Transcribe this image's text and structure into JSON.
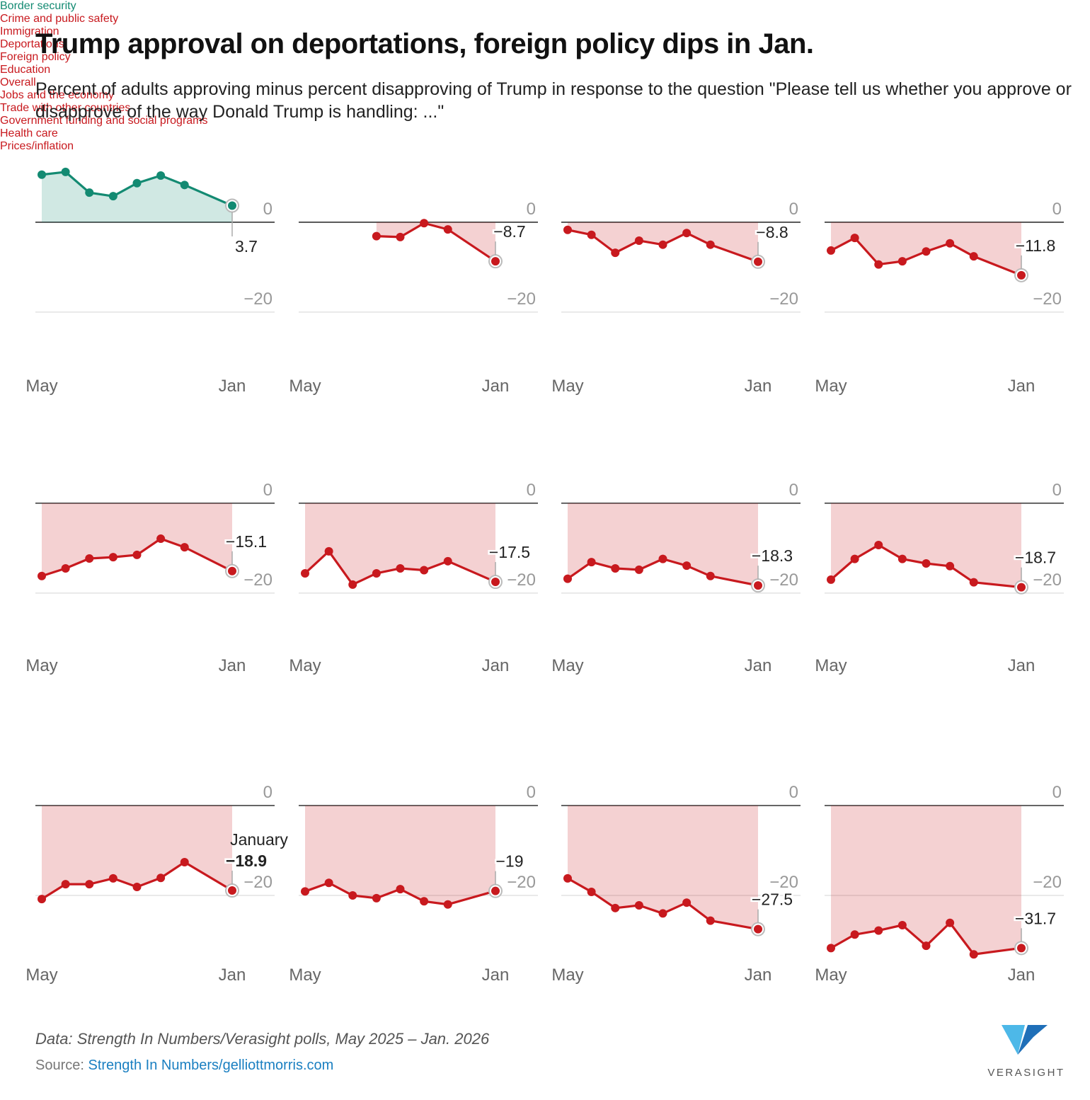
{
  "title": "Trump approval on deportations, foreign policy dips in Jan.",
  "subtitle": "Percent of adults approving minus percent disapproving of Trump in response to the question \"Please tell us whether you approve or disapprove of the way Donald Trump is handling: ...\"",
  "note": "Data: Strength In Numbers/Verasight polls, May 2025 – Jan. 2026",
  "source_label": "Source:",
  "source_link": "Strength In Numbers/gelliottmorris.com",
  "logo_text": "VERASIGHT",
  "chart_data": [
    {
      "type": "line",
      "title": "Border security",
      "color": "#138a72",
      "area": true,
      "xlim": [
        0,
        8
      ],
      "xticks": [
        {
          "value": 0,
          "label": "May"
        },
        {
          "value": 8,
          "label": "Jan"
        }
      ],
      "ylim": [
        -35,
        13
      ],
      "yticks": [
        0,
        {
          "value": -20,
          "label": "−20"
        }
      ],
      "x": [
        0,
        1,
        2,
        3,
        4,
        5,
        6,
        8
      ],
      "values": [
        10.6,
        11.2,
        6.6,
        5.8,
        8.7,
        10.4,
        8.3,
        3.7
      ],
      "value_labels": [
        null,
        null,
        null,
        null,
        null,
        null,
        null,
        "3.7"
      ]
    },
    {
      "type": "line",
      "title": "Crime and public safety",
      "color": "#c8191e",
      "area": true,
      "xlim": [
        0,
        8
      ],
      "xticks": [
        {
          "value": 0,
          "label": "May"
        },
        {
          "value": 8,
          "label": "Jan"
        }
      ],
      "ylim": [
        -35,
        13
      ],
      "yticks": [
        0,
        {
          "value": -20,
          "label": "−20"
        }
      ],
      "x": [
        3,
        4,
        5,
        6,
        8
      ],
      "values": [
        -3.1,
        -3.3,
        -0.2,
        -1.6,
        -8.7
      ],
      "value_labels": [
        null,
        null,
        null,
        null,
        "−8.7"
      ]
    },
    {
      "type": "line",
      "title": "Immigration",
      "color": "#c8191e",
      "area": true,
      "xlim": [
        0,
        8
      ],
      "xticks": [
        {
          "value": 0,
          "label": "May"
        },
        {
          "value": 8,
          "label": "Jan"
        }
      ],
      "ylim": [
        -35,
        13
      ],
      "yticks": [
        0,
        {
          "value": -20,
          "label": "−20"
        }
      ],
      "x": [
        0,
        1,
        2,
        3,
        4,
        5,
        6,
        8
      ],
      "values": [
        -1.7,
        -2.8,
        -6.8,
        -4.1,
        -5.0,
        -2.4,
        -5.0,
        -8.8
      ],
      "value_labels": [
        null,
        null,
        null,
        null,
        null,
        null,
        null,
        "−8.8"
      ]
    },
    {
      "type": "line",
      "title": "Deportations",
      "color": "#c8191e",
      "area": true,
      "xlim": [
        0,
        8
      ],
      "xticks": [
        {
          "value": 0,
          "label": "May"
        },
        {
          "value": 8,
          "label": "Jan"
        }
      ],
      "ylim": [
        -35,
        13
      ],
      "yticks": [
        0,
        {
          "value": -20,
          "label": "−20"
        }
      ],
      "x": [
        0,
        1,
        2,
        3,
        4,
        5,
        6,
        8
      ],
      "values": [
        -6.3,
        -3.5,
        -9.4,
        -8.7,
        -6.5,
        -4.7,
        -7.6,
        -11.8
      ],
      "value_labels": [
        null,
        null,
        null,
        null,
        null,
        null,
        null,
        "−11.8"
      ]
    },
    {
      "type": "line",
      "title": "Foreign policy",
      "color": "#c8191e",
      "area": true,
      "xlim": [
        0,
        8
      ],
      "xticks": [
        {
          "value": 0,
          "label": "May"
        },
        {
          "value": 8,
          "label": "Jan"
        }
      ],
      "ylim": [
        -33,
        11
      ],
      "yticks": [
        0,
        {
          "value": -20,
          "label": "−20"
        }
      ],
      "x": [
        0,
        1,
        2,
        3,
        4,
        5,
        6,
        8
      ],
      "values": [
        -16.2,
        -14.5,
        -12.3,
        -12.0,
        -11.5,
        -7.9,
        -9.8,
        -15.1
      ],
      "value_labels": [
        null,
        null,
        null,
        null,
        null,
        null,
        null,
        "−15.1"
      ]
    },
    {
      "type": "line",
      "title": "Education",
      "color": "#c8191e",
      "area": true,
      "xlim": [
        0,
        8
      ],
      "xticks": [
        {
          "value": 0,
          "label": "May"
        },
        {
          "value": 8,
          "label": "Jan"
        }
      ],
      "ylim": [
        -33,
        11
      ],
      "yticks": [
        0,
        {
          "value": -20,
          "label": "−20"
        }
      ],
      "x": [
        0,
        1,
        2,
        3,
        4,
        5,
        6,
        8
      ],
      "values": [
        -15.6,
        -10.7,
        -18.1,
        -15.6,
        -14.5,
        -14.9,
        -12.9,
        -17.5
      ],
      "value_labels": [
        null,
        null,
        null,
        null,
        null,
        null,
        null,
        "−17.5"
      ]
    },
    {
      "type": "line",
      "title": "Overall",
      "color": "#c8191e",
      "area": true,
      "xlim": [
        0,
        8
      ],
      "xticks": [
        {
          "value": 0,
          "label": "May"
        },
        {
          "value": 8,
          "label": "Jan"
        }
      ],
      "ylim": [
        -33,
        11
      ],
      "yticks": [
        0,
        {
          "value": -20,
          "label": "−20"
        }
      ],
      "x": [
        0,
        1,
        2,
        3,
        4,
        5,
        6,
        8
      ],
      "values": [
        -16.8,
        -13.1,
        -14.5,
        -14.8,
        -12.4,
        -13.9,
        -16.2,
        -18.3
      ],
      "value_labels": [
        null,
        null,
        null,
        null,
        null,
        null,
        null,
        "−18.3"
      ]
    },
    {
      "type": "line",
      "title": "Jobs and the economy",
      "color": "#c8191e",
      "area": true,
      "xlim": [
        0,
        8
      ],
      "xticks": [
        {
          "value": 0,
          "label": "May"
        },
        {
          "value": 8,
          "label": "Jan"
        }
      ],
      "ylim": [
        -33,
        11
      ],
      "yticks": [
        0,
        {
          "value": -20,
          "label": "−20"
        }
      ],
      "x": [
        0,
        1,
        2,
        3,
        4,
        5,
        6,
        8
      ],
      "values": [
        -17.0,
        -12.4,
        -9.3,
        -12.4,
        -13.4,
        -14.0,
        -17.6,
        -18.7
      ],
      "value_labels": [
        null,
        null,
        null,
        null,
        null,
        null,
        null,
        "−18.7"
      ]
    },
    {
      "type": "line",
      "title": "Trade with other countries",
      "color": "#c8191e",
      "area": true,
      "xlim": [
        0,
        8
      ],
      "xticks": [
        {
          "value": 0,
          "label": "May"
        },
        {
          "value": 8,
          "label": "Jan"
        }
      ],
      "ylim": [
        -37,
        10
      ],
      "yticks": [
        0,
        {
          "value": -20,
          "label": "−20"
        }
      ],
      "x": [
        0,
        1,
        2,
        3,
        4,
        5,
        6,
        8
      ],
      "values": [
        -20.8,
        -17.5,
        -17.5,
        -16.2,
        -18.1,
        -16.1,
        -12.6,
        -18.9
      ],
      "value_labels": [
        null,
        null,
        null,
        null,
        null,
        null,
        null,
        "−18.9"
      ],
      "annotation": "January"
    },
    {
      "type": "line",
      "title": "Government funding and social programs",
      "color": "#c8191e",
      "area": true,
      "xlim": [
        0,
        8
      ],
      "xticks": [
        {
          "value": 0,
          "label": "May"
        },
        {
          "value": 8,
          "label": "Jan"
        }
      ],
      "ylim": [
        -37,
        10
      ],
      "yticks": [
        0,
        {
          "value": -20,
          "label": "−20"
        }
      ],
      "x": [
        0,
        1,
        2,
        3,
        4,
        5,
        6,
        8
      ],
      "values": [
        -19.1,
        -17.2,
        -20.0,
        -20.6,
        -18.6,
        -21.3,
        -22.0,
        -19
      ],
      "value_labels": [
        null,
        null,
        null,
        null,
        null,
        null,
        null,
        "−19"
      ]
    },
    {
      "type": "line",
      "title": "Health care",
      "color": "#c8191e",
      "area": true,
      "xlim": [
        0,
        8
      ],
      "xticks": [
        {
          "value": 0,
          "label": "May"
        },
        {
          "value": 8,
          "label": "Jan"
        }
      ],
      "ylim": [
        -37,
        10
      ],
      "yticks": [
        0,
        {
          "value": -20,
          "label": "−20"
        }
      ],
      "x": [
        0,
        1,
        2,
        3,
        4,
        5,
        6,
        8
      ],
      "values": [
        -16.2,
        -19.2,
        -22.8,
        -22.2,
        -24.0,
        -21.6,
        -25.6,
        -27.5
      ],
      "value_labels": [
        null,
        null,
        null,
        null,
        null,
        null,
        null,
        "−27.5"
      ]
    },
    {
      "type": "line",
      "title": "Prices/inflation",
      "color": "#c8191e",
      "area": true,
      "xlim": [
        0,
        8
      ],
      "xticks": [
        {
          "value": 0,
          "label": "May"
        },
        {
          "value": 8,
          "label": "Jan"
        }
      ],
      "ylim": [
        -37,
        10
      ],
      "yticks": [
        0,
        {
          "value": -20,
          "label": "−20"
        }
      ],
      "x": [
        0,
        1,
        2,
        3,
        4,
        5,
        6,
        8
      ],
      "values": [
        -31.7,
        -28.7,
        -27.8,
        -26.6,
        -31.2,
        -26.1,
        -33.1,
        -31.7
      ],
      "value_labels": [
        null,
        null,
        null,
        null,
        null,
        null,
        null,
        "−31.7"
      ]
    }
  ]
}
